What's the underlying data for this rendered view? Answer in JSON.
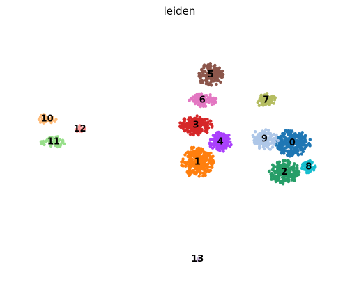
{
  "chart_data": {
    "type": "scatter",
    "title": "leiden",
    "xlabel": "",
    "ylabel": "",
    "xlim": [
      0,
      100
    ],
    "ylim": [
      0,
      100
    ],
    "axes_visible": false,
    "grid": false,
    "legend": "on data",
    "clusters": [
      {
        "label": "0",
        "color": "#1f77b4",
        "center": [
          84.5,
          53.0
        ],
        "spread": [
          6.5,
          6.0
        ],
        "count": 260
      },
      {
        "label": "1",
        "color": "#ff7f0e",
        "center": [
          55.5,
          45.5
        ],
        "spread": [
          6.0,
          7.0
        ],
        "count": 260
      },
      {
        "label": "2",
        "color": "#279e68",
        "center": [
          82.0,
          41.5
        ],
        "spread": [
          5.5,
          5.5
        ],
        "count": 200
      },
      {
        "label": "3",
        "color": "#d62728",
        "center": [
          55.0,
          60.0
        ],
        "spread": [
          6.0,
          4.5
        ],
        "count": 200
      },
      {
        "label": "4",
        "color": "#aa40fc",
        "center": [
          62.5,
          53.5
        ],
        "spread": [
          4.0,
          4.5
        ],
        "count": 150
      },
      {
        "label": "5",
        "color": "#8c564b",
        "center": [
          59.5,
          80.0
        ],
        "spread": [
          4.5,
          5.5
        ],
        "count": 160
      },
      {
        "label": "6",
        "color": "#e377c2",
        "center": [
          57.0,
          70.0
        ],
        "spread": [
          5.0,
          3.0
        ],
        "count": 110
      },
      {
        "label": "7",
        "color": "#b5bd61",
        "center": [
          76.5,
          70.0
        ],
        "spread": [
          3.5,
          3.5
        ],
        "count": 80
      },
      {
        "label": "8",
        "color": "#17becf",
        "center": [
          89.5,
          43.5
        ],
        "spread": [
          2.5,
          3.0
        ],
        "count": 50
      },
      {
        "label": "9",
        "color": "#aec7e8",
        "center": [
          76.0,
          54.5
        ],
        "spread": [
          5.0,
          5.0
        ],
        "count": 110
      },
      {
        "label": "10",
        "color": "#ffbb78",
        "center": [
          9.5,
          62.5
        ],
        "spread": [
          3.5,
          2.0
        ],
        "count": 55
      },
      {
        "label": "11",
        "color": "#98df8a",
        "center": [
          11.5,
          53.5
        ],
        "spread": [
          4.5,
          2.5
        ],
        "count": 55
      },
      {
        "label": "12",
        "color": "#ff9896",
        "center": [
          19.5,
          58.5
        ],
        "spread": [
          2.0,
          2.0
        ],
        "count": 15
      },
      {
        "label": "13",
        "color": "#c5b0d5",
        "center": [
          55.5,
          7.0
        ],
        "spread": [
          0.5,
          0.5
        ],
        "count": 3
      }
    ]
  }
}
